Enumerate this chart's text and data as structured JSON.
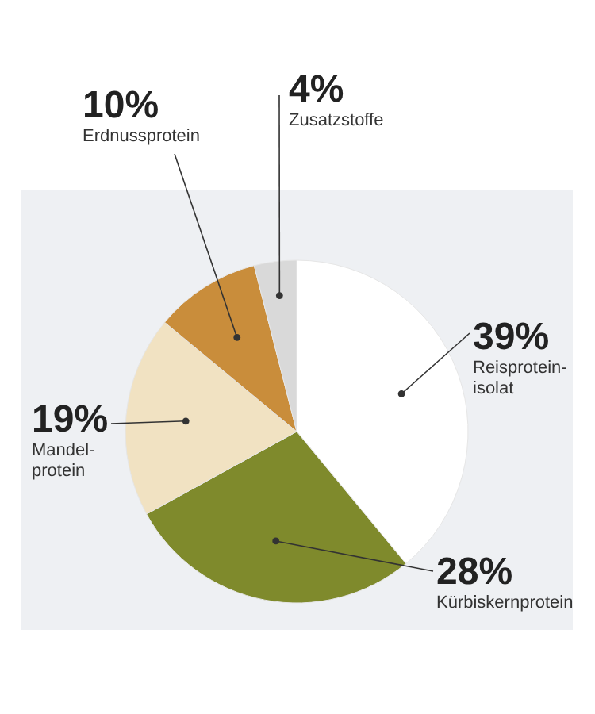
{
  "chart_data": {
    "type": "pie",
    "categories": [
      "Reisprotein-isolat",
      "Kürbiskernprotein",
      "Mandel-protein",
      "Erdnussprotein",
      "Zusatzstoffe"
    ],
    "values": [
      39,
      28,
      19,
      10,
      4
    ],
    "colors": [
      "#ffffff",
      "#7f8a2c",
      "#f1e2c2",
      "#c98d3b",
      "#d9d9d9"
    ],
    "value_labels": [
      "39%",
      "28%",
      "19%",
      "10%",
      "4%"
    ]
  }
}
